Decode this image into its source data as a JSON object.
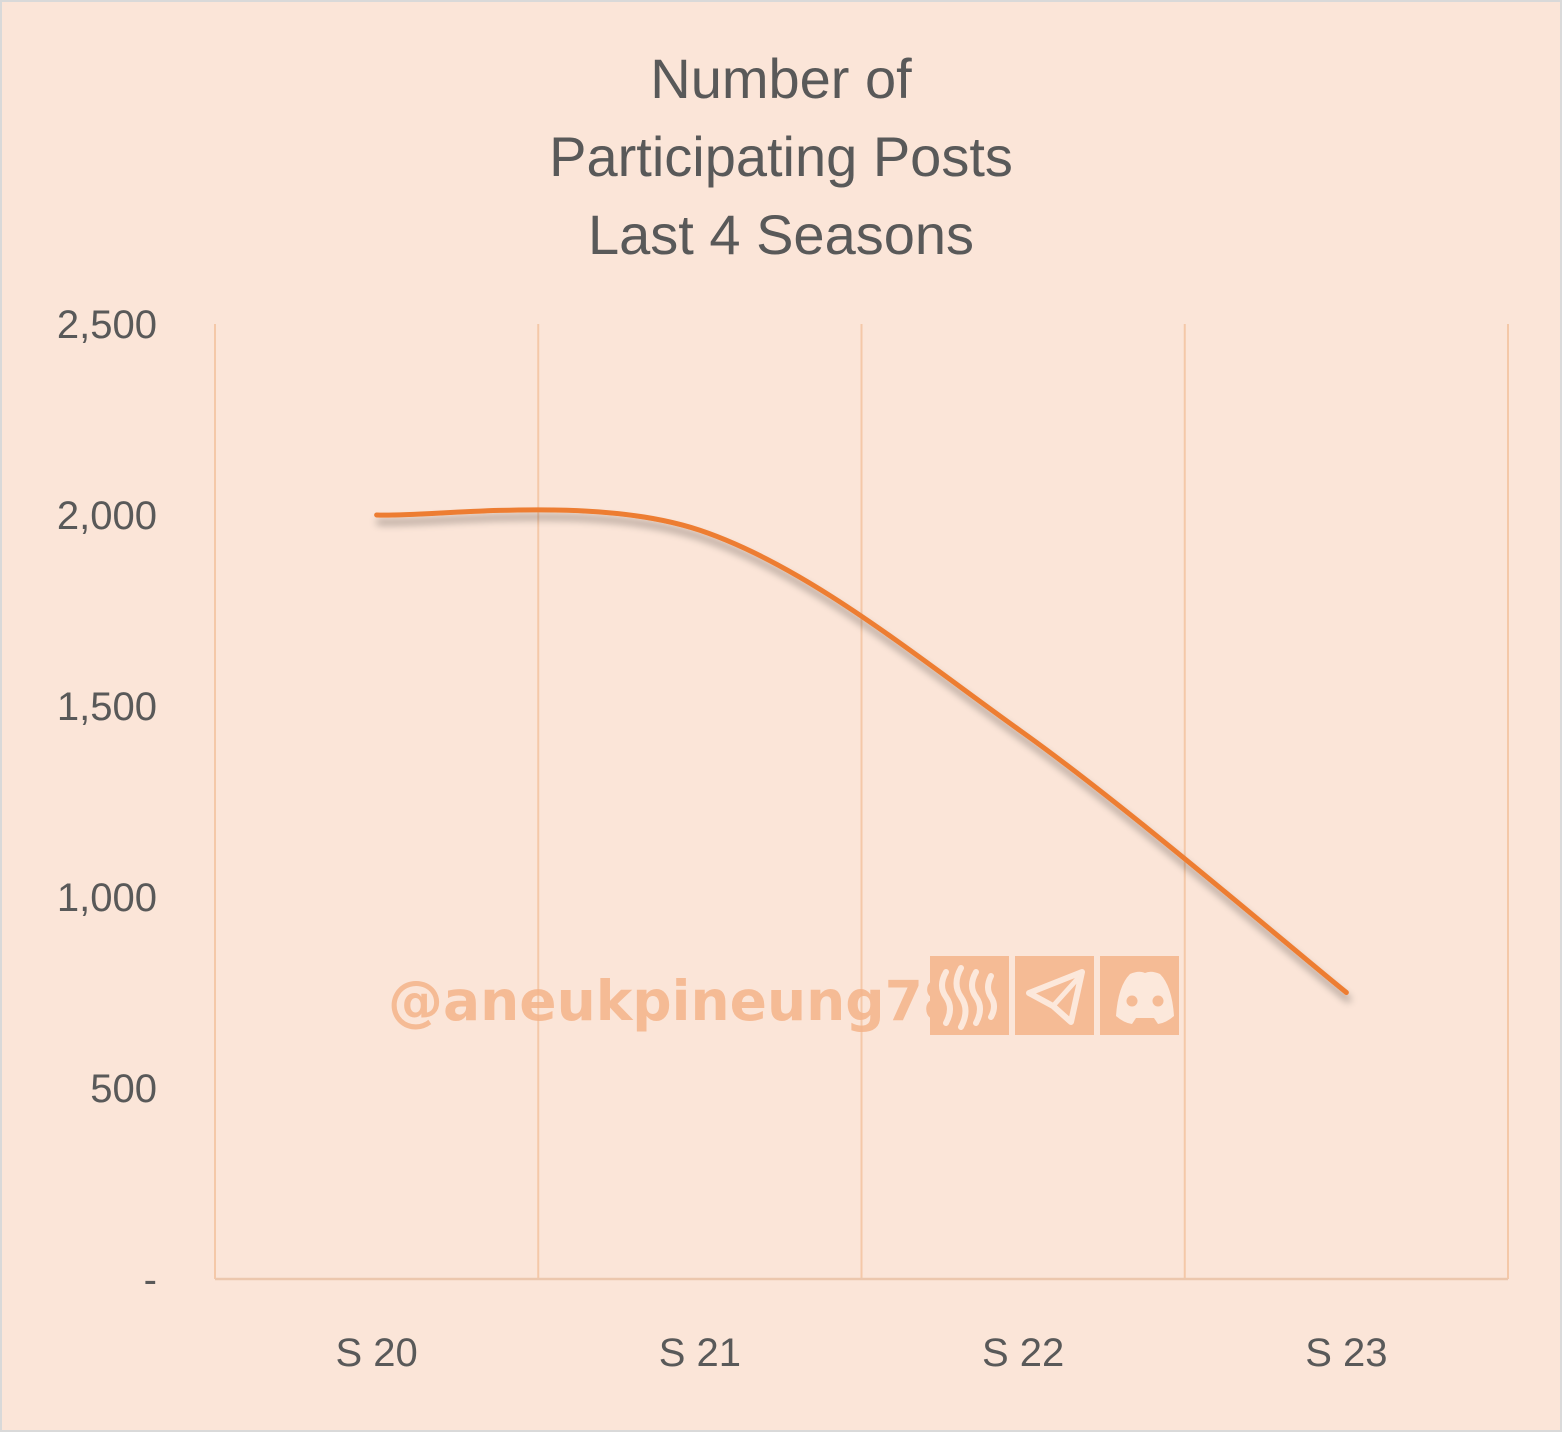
{
  "chart_data": {
    "type": "line",
    "title": [
      "Number of",
      "Participating Posts",
      "Last 4 Seasons"
    ],
    "categories": [
      "S 20",
      "S 21",
      "S 22",
      "S 23"
    ],
    "series": [
      {
        "values": [
          2000,
          1960,
          1430,
          750
        ],
        "color": "#ed7d31"
      }
    ],
    "ylim": [
      0,
      2500
    ],
    "yticks": [
      0,
      500,
      1000,
      1500,
      2000,
      2500
    ],
    "ytick_labels": [
      "-",
      "500",
      "1,000",
      "1,500",
      "2,000",
      "2,500"
    ],
    "smooth": true,
    "grid": "vertical",
    "xlabel": "",
    "ylabel": ""
  },
  "watermark": {
    "text": "@aneukpineung78",
    "icons": [
      "steem-icon",
      "telegram-icon",
      "discord-icon"
    ]
  },
  "colors": {
    "background": "#fbe5d8",
    "line": "#ed7d31",
    "gridline": "#f4c8a8",
    "text": "#595959",
    "watermark": "#f5b48a"
  }
}
